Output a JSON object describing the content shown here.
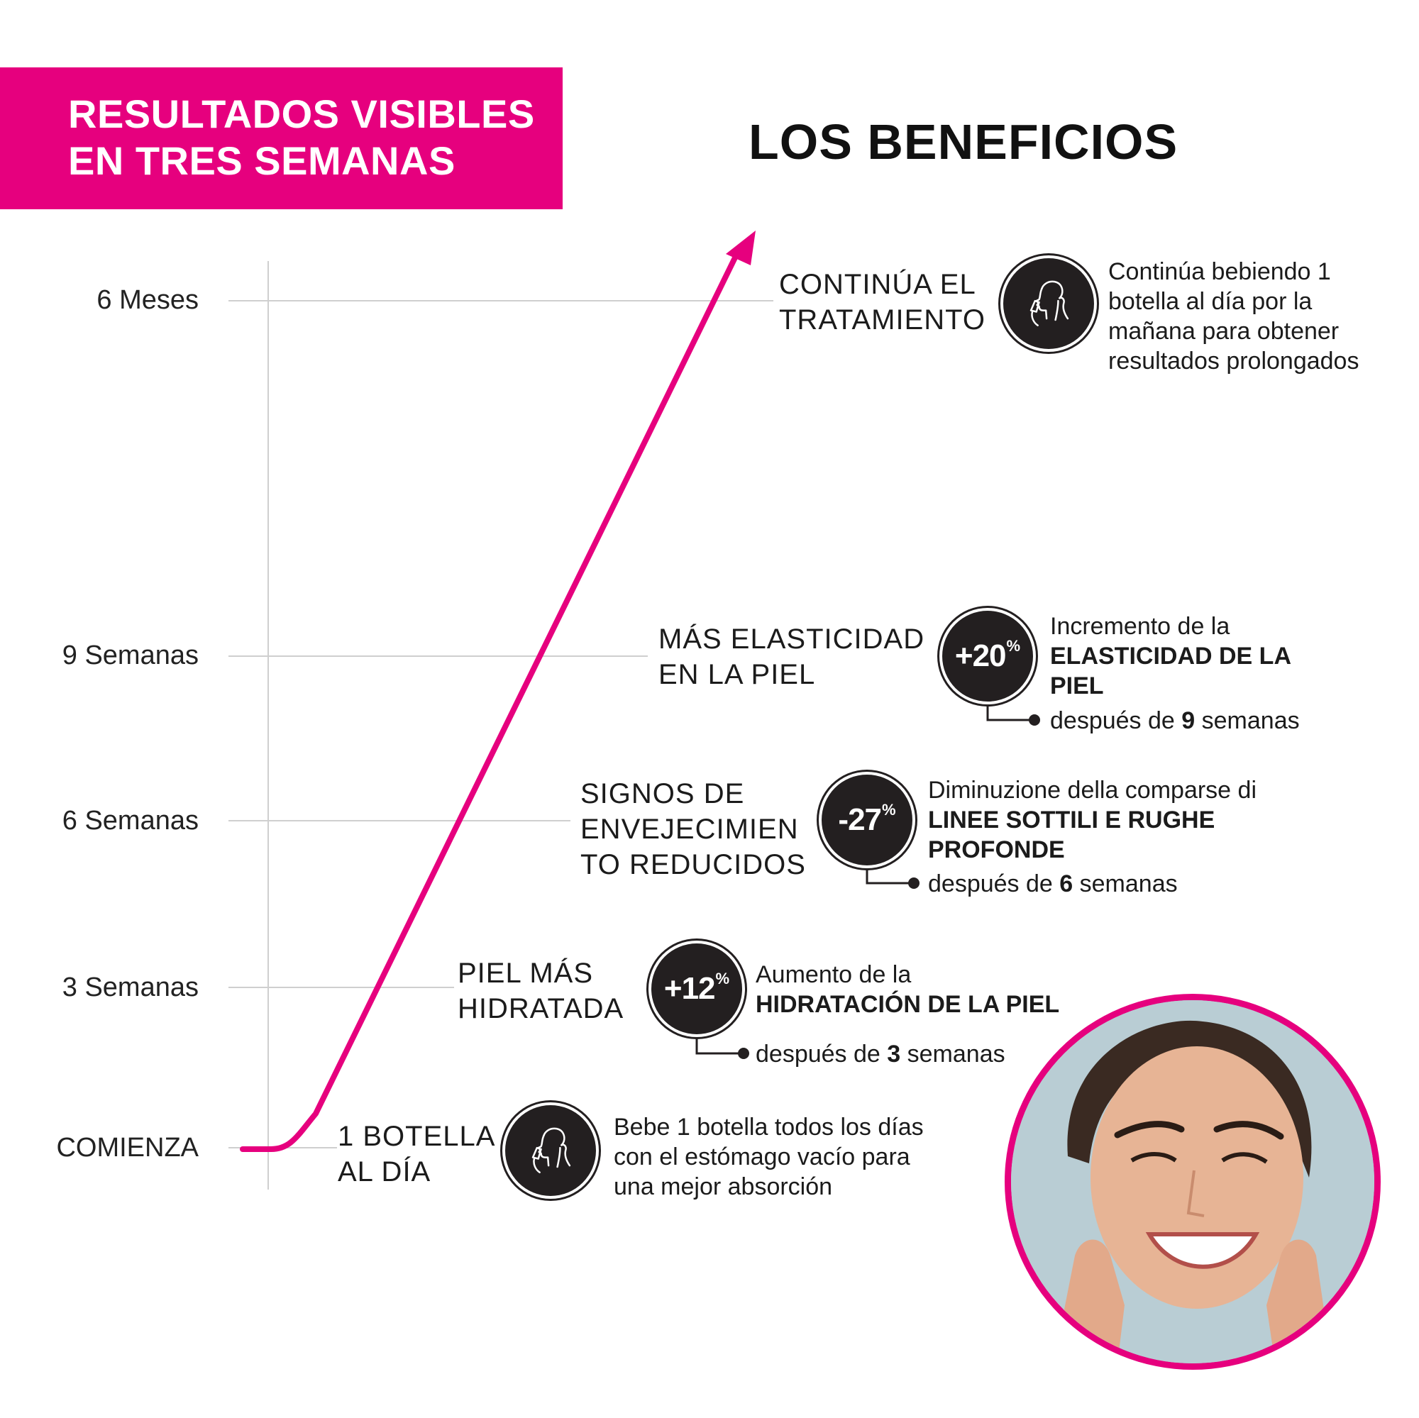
{
  "header": {
    "banner_title": "RESULTADOS VISIBLES\nEN TRES SEMANAS",
    "section_title": "LOS BENEFICIOS"
  },
  "colors": {
    "accent": "#e6007e",
    "badge": "#231f20",
    "grid": "#cfcfcf"
  },
  "timeline": {
    "axis_labels": [
      "6 Meses",
      "9 Semanas",
      "6 Semanas",
      "3 Semanas",
      "COMIENZA"
    ]
  },
  "stages": [
    {
      "title": "1 BOTELLA\nAL DÍA",
      "icon": "woman-drinking-icon",
      "description": "Bebe 1 botella todos los días con el estómago vacío para una mejor absorción"
    },
    {
      "title": "PIEL MÁS\nHIDRATADA",
      "badge_value": "+12",
      "badge_unit": "%",
      "desc_prefix": "Aumento de la",
      "desc_bold": "HIDRATACIÓN DE LA PIEL",
      "after_prefix": "después de",
      "after_number": "3",
      "after_suffix": "semanas"
    },
    {
      "title": "SIGNOS DE\nENVEJECIMIEN\nTO REDUCIDOS",
      "badge_value": "-27",
      "badge_unit": "%",
      "desc_prefix": "Diminuzione della comparse di",
      "desc_bold": "LINEE SOTTILI E RUGHE PROFONDE",
      "after_prefix": "después de",
      "after_number": "6",
      "after_suffix": "semanas"
    },
    {
      "title": "MÁS ELASTICIDAD\nEN LA PIEL",
      "badge_value": "+20",
      "badge_unit": "%",
      "desc_prefix": "Incremento de la",
      "desc_bold": "ELASTICIDAD DE LA PIEL",
      "after_prefix": "después de",
      "after_number": "9",
      "after_suffix": "semanas"
    },
    {
      "title": "CONTINÚA EL\nTRATAMIENTO",
      "icon": "woman-drinking-icon",
      "description": "Continúa bebiendo 1 botella al día por la mañana para obtener resultados prolongados"
    }
  ]
}
